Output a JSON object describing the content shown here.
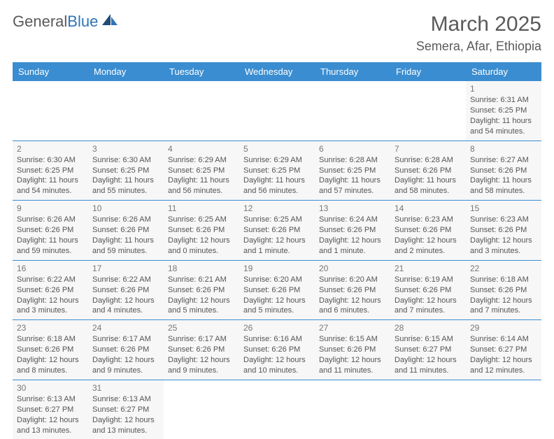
{
  "brand": {
    "part1": "General",
    "part2": "Blue"
  },
  "header": {
    "title": "March 2025",
    "location": "Semera, Afar, Ethiopia"
  },
  "colors": {
    "header_bg": "#3a8dd0",
    "header_text": "#ffffff",
    "cell_bg": "#f7f7f7",
    "border": "#3a8dd0",
    "text": "#555555",
    "title_text": "#5a5a5a"
  },
  "weekdays": [
    "Sunday",
    "Monday",
    "Tuesday",
    "Wednesday",
    "Thursday",
    "Friday",
    "Saturday"
  ],
  "weeks": [
    [
      null,
      null,
      null,
      null,
      null,
      null,
      {
        "d": "1",
        "sr": "Sunrise: 6:31 AM",
        "ss": "Sunset: 6:25 PM",
        "dl": "Daylight: 11 hours and 54 minutes."
      }
    ],
    [
      {
        "d": "2",
        "sr": "Sunrise: 6:30 AM",
        "ss": "Sunset: 6:25 PM",
        "dl": "Daylight: 11 hours and 54 minutes."
      },
      {
        "d": "3",
        "sr": "Sunrise: 6:30 AM",
        "ss": "Sunset: 6:25 PM",
        "dl": "Daylight: 11 hours and 55 minutes."
      },
      {
        "d": "4",
        "sr": "Sunrise: 6:29 AM",
        "ss": "Sunset: 6:25 PM",
        "dl": "Daylight: 11 hours and 56 minutes."
      },
      {
        "d": "5",
        "sr": "Sunrise: 6:29 AM",
        "ss": "Sunset: 6:25 PM",
        "dl": "Daylight: 11 hours and 56 minutes."
      },
      {
        "d": "6",
        "sr": "Sunrise: 6:28 AM",
        "ss": "Sunset: 6:25 PM",
        "dl": "Daylight: 11 hours and 57 minutes."
      },
      {
        "d": "7",
        "sr": "Sunrise: 6:28 AM",
        "ss": "Sunset: 6:26 PM",
        "dl": "Daylight: 11 hours and 58 minutes."
      },
      {
        "d": "8",
        "sr": "Sunrise: 6:27 AM",
        "ss": "Sunset: 6:26 PM",
        "dl": "Daylight: 11 hours and 58 minutes."
      }
    ],
    [
      {
        "d": "9",
        "sr": "Sunrise: 6:26 AM",
        "ss": "Sunset: 6:26 PM",
        "dl": "Daylight: 11 hours and 59 minutes."
      },
      {
        "d": "10",
        "sr": "Sunrise: 6:26 AM",
        "ss": "Sunset: 6:26 PM",
        "dl": "Daylight: 11 hours and 59 minutes."
      },
      {
        "d": "11",
        "sr": "Sunrise: 6:25 AM",
        "ss": "Sunset: 6:26 PM",
        "dl": "Daylight: 12 hours and 0 minutes."
      },
      {
        "d": "12",
        "sr": "Sunrise: 6:25 AM",
        "ss": "Sunset: 6:26 PM",
        "dl": "Daylight: 12 hours and 1 minute."
      },
      {
        "d": "13",
        "sr": "Sunrise: 6:24 AM",
        "ss": "Sunset: 6:26 PM",
        "dl": "Daylight: 12 hours and 1 minute."
      },
      {
        "d": "14",
        "sr": "Sunrise: 6:23 AM",
        "ss": "Sunset: 6:26 PM",
        "dl": "Daylight: 12 hours and 2 minutes."
      },
      {
        "d": "15",
        "sr": "Sunrise: 6:23 AM",
        "ss": "Sunset: 6:26 PM",
        "dl": "Daylight: 12 hours and 3 minutes."
      }
    ],
    [
      {
        "d": "16",
        "sr": "Sunrise: 6:22 AM",
        "ss": "Sunset: 6:26 PM",
        "dl": "Daylight: 12 hours and 3 minutes."
      },
      {
        "d": "17",
        "sr": "Sunrise: 6:22 AM",
        "ss": "Sunset: 6:26 PM",
        "dl": "Daylight: 12 hours and 4 minutes."
      },
      {
        "d": "18",
        "sr": "Sunrise: 6:21 AM",
        "ss": "Sunset: 6:26 PM",
        "dl": "Daylight: 12 hours and 5 minutes."
      },
      {
        "d": "19",
        "sr": "Sunrise: 6:20 AM",
        "ss": "Sunset: 6:26 PM",
        "dl": "Daylight: 12 hours and 5 minutes."
      },
      {
        "d": "20",
        "sr": "Sunrise: 6:20 AM",
        "ss": "Sunset: 6:26 PM",
        "dl": "Daylight: 12 hours and 6 minutes."
      },
      {
        "d": "21",
        "sr": "Sunrise: 6:19 AM",
        "ss": "Sunset: 6:26 PM",
        "dl": "Daylight: 12 hours and 7 minutes."
      },
      {
        "d": "22",
        "sr": "Sunrise: 6:18 AM",
        "ss": "Sunset: 6:26 PM",
        "dl": "Daylight: 12 hours and 7 minutes."
      }
    ],
    [
      {
        "d": "23",
        "sr": "Sunrise: 6:18 AM",
        "ss": "Sunset: 6:26 PM",
        "dl": "Daylight: 12 hours and 8 minutes."
      },
      {
        "d": "24",
        "sr": "Sunrise: 6:17 AM",
        "ss": "Sunset: 6:26 PM",
        "dl": "Daylight: 12 hours and 9 minutes."
      },
      {
        "d": "25",
        "sr": "Sunrise: 6:17 AM",
        "ss": "Sunset: 6:26 PM",
        "dl": "Daylight: 12 hours and 9 minutes."
      },
      {
        "d": "26",
        "sr": "Sunrise: 6:16 AM",
        "ss": "Sunset: 6:26 PM",
        "dl": "Daylight: 12 hours and 10 minutes."
      },
      {
        "d": "27",
        "sr": "Sunrise: 6:15 AM",
        "ss": "Sunset: 6:26 PM",
        "dl": "Daylight: 12 hours and 11 minutes."
      },
      {
        "d": "28",
        "sr": "Sunrise: 6:15 AM",
        "ss": "Sunset: 6:27 PM",
        "dl": "Daylight: 12 hours and 11 minutes."
      },
      {
        "d": "29",
        "sr": "Sunrise: 6:14 AM",
        "ss": "Sunset: 6:27 PM",
        "dl": "Daylight: 12 hours and 12 minutes."
      }
    ],
    [
      {
        "d": "30",
        "sr": "Sunrise: 6:13 AM",
        "ss": "Sunset: 6:27 PM",
        "dl": "Daylight: 12 hours and 13 minutes."
      },
      {
        "d": "31",
        "sr": "Sunrise: 6:13 AM",
        "ss": "Sunset: 6:27 PM",
        "dl": "Daylight: 12 hours and 13 minutes."
      },
      null,
      null,
      null,
      null,
      null
    ]
  ]
}
